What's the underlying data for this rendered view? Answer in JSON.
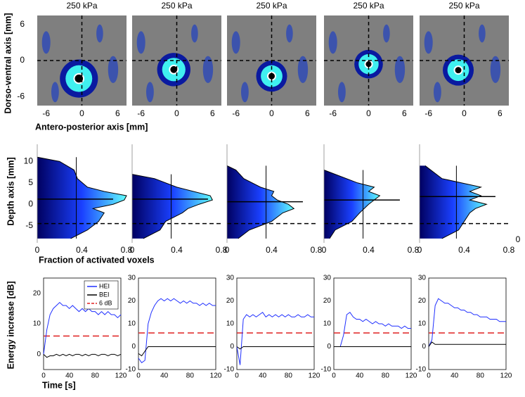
{
  "chart_data": [
    {
      "type": "heatmap",
      "y_label": "Dorso-ventral axis [mm]",
      "x_label": "Antero-posterior axis [mm]",
      "xlim": [
        -7.5,
        7.5
      ],
      "ylim": [
        -7.5,
        7.5
      ],
      "xticks": [
        -6,
        0,
        6
      ],
      "yticks": [
        6,
        0,
        -6
      ],
      "crosshair": [
        0,
        0
      ],
      "panels": [
        {
          "title": "250 kPa",
          "centroid": [
            -0.5,
            -3
          ],
          "size": 3.2
        },
        {
          "title": "250 kPa",
          "centroid": [
            -0.5,
            -1.5
          ],
          "size": 2.8
        },
        {
          "title": "250 kPa",
          "centroid": [
            0,
            -2.6
          ],
          "size": 2.6
        },
        {
          "title": "250 kPa",
          "centroid": [
            0,
            -0.6
          ],
          "size": 2.4
        },
        {
          "title": "250 kPa",
          "centroid": [
            -1,
            -1.6
          ],
          "size": 2.6
        }
      ]
    },
    {
      "type": "area",
      "y_label": "Depth axis [mm]",
      "x_label": "Fraction of activated voxels",
      "xlim": [
        0,
        0.8
      ],
      "ylim": [
        -9,
        14
      ],
      "xticks": [
        0,
        0.4,
        0.8
      ],
      "yticks": [
        10,
        5,
        0,
        -5
      ],
      "extra_label": "0",
      "threshold_depth": -4.5,
      "panels": [
        {
          "depth": [
            -8,
            -6,
            -4,
            -2,
            -1,
            0,
            1,
            2,
            3,
            4,
            6,
            8,
            10,
            11
          ],
          "fraction": [
            0.3,
            0.45,
            0.55,
            0.6,
            0.5,
            0.68,
            0.78,
            0.8,
            0.6,
            0.45,
            0.36,
            0.33,
            0.2,
            0
          ],
          "mean_depth": 1.2,
          "mean_fraction": 0.35
        },
        {
          "depth": [
            -8,
            -6,
            -4,
            -2,
            -1,
            0,
            1,
            2,
            3,
            4,
            6,
            7
          ],
          "fraction": [
            0.1,
            0.25,
            0.3,
            0.45,
            0.5,
            0.6,
            0.72,
            0.7,
            0.55,
            0.4,
            0.2,
            0
          ],
          "mean_depth": 1.2,
          "mean_fraction": 0.35
        },
        {
          "depth": [
            -8,
            -6,
            -4,
            -2,
            -1,
            0,
            1,
            2,
            3,
            4,
            6,
            8,
            9
          ],
          "fraction": [
            0.1,
            0.2,
            0.4,
            0.5,
            0.6,
            0.55,
            0.45,
            0.4,
            0.42,
            0.3,
            0.15,
            0.08,
            0
          ],
          "mean_depth": 0.6,
          "mean_fraction": 0.35
        },
        {
          "depth": [
            -8,
            -6,
            -4,
            -2,
            0,
            1,
            2,
            3,
            4,
            5,
            7,
            8
          ],
          "fraction": [
            0.05,
            0.1,
            0.25,
            0.32,
            0.4,
            0.45,
            0.5,
            0.4,
            0.45,
            0.3,
            0.1,
            0
          ],
          "mean_depth": 1,
          "mean_fraction": 0.35
        },
        {
          "depth": [
            -8,
            -6,
            -4,
            -2,
            -1,
            0,
            1,
            2,
            3,
            4,
            6,
            9
          ],
          "fraction": [
            0.2,
            0.35,
            0.4,
            0.45,
            0.5,
            0.6,
            0.45,
            0.55,
            0.45,
            0.55,
            0.2,
            0.05
          ],
          "mean_depth": 1.8,
          "mean_fraction": 0.33
        }
      ]
    },
    {
      "type": "line",
      "y_label": "Energy increase [dB]",
      "x_label": "Time [s]",
      "xlim": [
        0,
        120
      ],
      "xticks": [
        0,
        40,
        80,
        120
      ],
      "threshold": 6,
      "legend": [
        {
          "name": "HEI",
          "color": "#1f2fff"
        },
        {
          "name": "BEI",
          "color": "#000000"
        },
        {
          "name": "6 dB",
          "color": "#e02020"
        }
      ],
      "x": [
        0,
        5,
        10,
        15,
        20,
        25,
        30,
        35,
        40,
        45,
        50,
        55,
        60,
        65,
        70,
        75,
        80,
        85,
        90,
        95,
        100,
        105,
        110,
        115,
        120
      ],
      "panels": [
        {
          "ylim": [
            -5,
            25
          ],
          "yticks": [
            0,
            10,
            20
          ],
          "series": [
            {
              "values": [
                0,
                8,
                13,
                15,
                16,
                17,
                16,
                16,
                15,
                16,
                15,
                14,
                15,
                14,
                15,
                14,
                14,
                13,
                14,
                13,
                14,
                13,
                13,
                12,
                13
              ]
            },
            {
              "values": [
                0,
                -1,
                -0.5,
                -0.5,
                0,
                -0.5,
                0,
                -0.5,
                0,
                -0.5,
                0,
                0,
                -0.5,
                0,
                -0.5,
                0,
                0,
                -0.5,
                0,
                0,
                -0.5,
                0,
                0,
                -0.5,
                0
              ]
            }
          ]
        },
        {
          "ylim": [
            -10,
            30
          ],
          "yticks": [
            -10,
            0,
            10,
            20,
            30
          ],
          "series": [
            {
              "values": [
                -5,
                -7,
                -6,
                10,
                15,
                18,
                20,
                21,
                20,
                21,
                20,
                21,
                20,
                19,
                20,
                19,
                20,
                19,
                19,
                18,
                19,
                18,
                19,
                18,
                18
              ]
            },
            {
              "values": [
                -3,
                -4,
                -2,
                0,
                0,
                0,
                0,
                0,
                0,
                0,
                0,
                0,
                0,
                0,
                0,
                0,
                0,
                0,
                0,
                0,
                0,
                0,
                0,
                0,
                0
              ]
            }
          ]
        },
        {
          "ylim": [
            -10,
            30
          ],
          "yticks": [
            -10,
            0,
            10,
            20,
            30
          ],
          "series": [
            {
              "values": [
                0,
                -8,
                12,
                14,
                13,
                14,
                13,
                14,
                15,
                13,
                14,
                13,
                14,
                13,
                14,
                13,
                14,
                13,
                13,
                14,
                13,
                13,
                14,
                13,
                13
              ]
            },
            {
              "values": [
                0,
                -1,
                0,
                0,
                0,
                0,
                0,
                0,
                0,
                0,
                0,
                0,
                0,
                0,
                0,
                0,
                0,
                0,
                0,
                0,
                0,
                0,
                0,
                0,
                0
              ]
            }
          ]
        },
        {
          "ylim": [
            -10,
            30
          ],
          "yticks": [
            -10,
            0,
            10,
            20,
            30
          ],
          "series": [
            {
              "values": [
                0,
                0,
                0,
                5,
                14,
                15,
                13,
                12,
                12,
                11,
                12,
                11,
                10,
                11,
                10,
                10,
                9,
                10,
                9,
                9,
                9,
                8,
                9,
                8,
                8
              ]
            },
            {
              "values": [
                0,
                0,
                0,
                0,
                0,
                0,
                0,
                0,
                0,
                0,
                0,
                0,
                0,
                0,
                0,
                0,
                0,
                0,
                0,
                0,
                0,
                0,
                0,
                0,
                0
              ]
            }
          ]
        },
        {
          "ylim": [
            -10,
            30
          ],
          "yticks": [
            -10,
            0,
            10,
            20,
            30
          ],
          "series": [
            {
              "values": [
                0,
                3,
                18,
                21,
                20,
                19,
                19,
                18,
                17,
                17,
                16,
                16,
                15,
                15,
                14,
                14,
                13,
                13,
                13,
                12,
                12,
                12,
                11,
                11,
                11
              ]
            },
            {
              "values": [
                0,
                2,
                1,
                1,
                1,
                1,
                1,
                1,
                1,
                1,
                1,
                1,
                1,
                1,
                1,
                1,
                1,
                1,
                1,
                1,
                1,
                1,
                1,
                1,
                1
              ]
            }
          ]
        }
      ]
    }
  ]
}
